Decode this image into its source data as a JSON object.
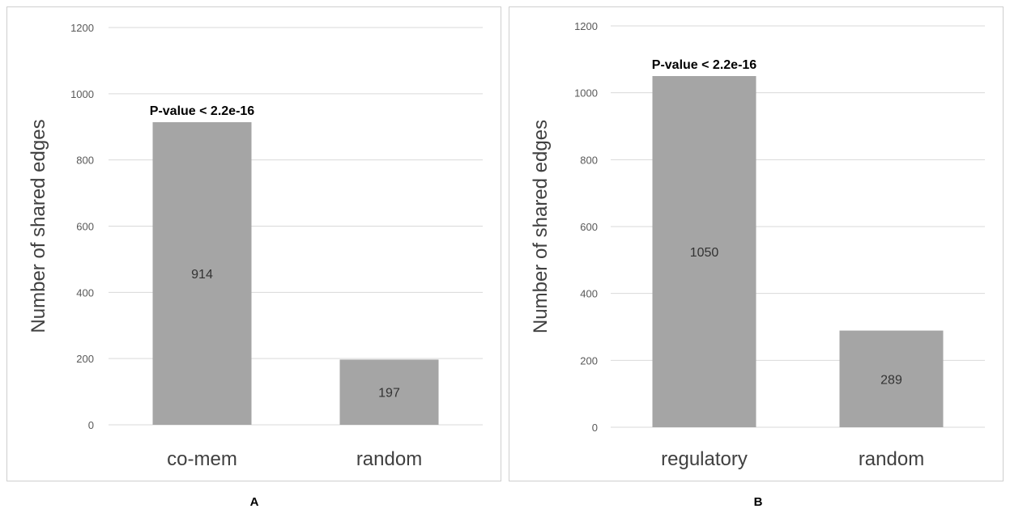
{
  "chart_data": [
    {
      "type": "bar",
      "categories": [
        "co-mem",
        "random"
      ],
      "values": [
        914,
        197
      ],
      "data_labels": [
        "914",
        "197"
      ],
      "title": "",
      "xlabel": "",
      "ylabel": "Number of shared edges",
      "ylim": [
        0,
        1200
      ],
      "yticks": [
        0,
        200,
        400,
        600,
        800,
        1000,
        1200
      ],
      "ytick_labels": [
        "0",
        "200",
        "400",
        "600",
        "800",
        "1000",
        "1200"
      ],
      "grid": true,
      "legend": "none",
      "bar_color": "#a5a5a5",
      "annotation": {
        "text": "P-value < 2.2e-16",
        "category": "co-mem"
      },
      "panel_label": "A"
    },
    {
      "type": "bar",
      "categories": [
        "regulatory",
        "random"
      ],
      "values": [
        1050,
        289
      ],
      "data_labels": [
        "1050",
        "289"
      ],
      "title": "",
      "xlabel": "",
      "ylabel": "Number of shared edges",
      "ylim": [
        0,
        1200
      ],
      "yticks": [
        0,
        200,
        400,
        600,
        800,
        1000,
        1200
      ],
      "ytick_labels": [
        "0",
        "200",
        "400",
        "600",
        "800",
        "1000",
        "1200"
      ],
      "grid": true,
      "legend": "none",
      "bar_color": "#a5a5a5",
      "annotation": {
        "text": "P-value < 2.2e-16",
        "category": "regulatory"
      },
      "panel_label": "B"
    }
  ]
}
